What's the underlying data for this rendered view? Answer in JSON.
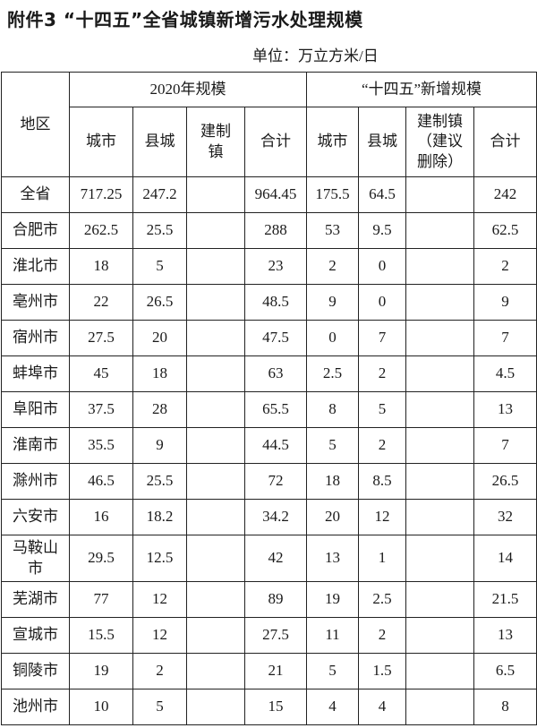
{
  "title": "附件3 “十四五”全省城镇新增污水处理规模",
  "unit": "单位：万立方米/日",
  "table": {
    "region_header": "地区",
    "group_2020": "2020年规模",
    "group_new": "“十四五”新增规模",
    "sub_2020": [
      "城市",
      "县城",
      "建制镇",
      "合计"
    ],
    "sub_new": [
      "城市",
      "县城",
      "建制镇（建议删除）",
      "合计"
    ],
    "rows": [
      {
        "region": "全省",
        "c2020": [
          "717.25",
          "247.2",
          "",
          "964.45"
        ],
        "cnew": [
          "175.5",
          "64.5",
          "",
          "242"
        ]
      },
      {
        "region": "合肥市",
        "c2020": [
          "262.5",
          "25.5",
          "",
          "288"
        ],
        "cnew": [
          "53",
          "9.5",
          "",
          "62.5"
        ]
      },
      {
        "region": "淮北市",
        "c2020": [
          "18",
          "5",
          "",
          "23"
        ],
        "cnew": [
          "2",
          "0",
          "",
          "2"
        ]
      },
      {
        "region": "亳州市",
        "c2020": [
          "22",
          "26.5",
          "",
          "48.5"
        ],
        "cnew": [
          "9",
          "0",
          "",
          "9"
        ]
      },
      {
        "region": "宿州市",
        "c2020": [
          "27.5",
          "20",
          "",
          "47.5"
        ],
        "cnew": [
          "0",
          "7",
          "",
          "7"
        ]
      },
      {
        "region": "蚌埠市",
        "c2020": [
          "45",
          "18",
          "",
          "63"
        ],
        "cnew": [
          "2.5",
          "2",
          "",
          "4.5"
        ]
      },
      {
        "region": "阜阳市",
        "c2020": [
          "37.5",
          "28",
          "",
          "65.5"
        ],
        "cnew": [
          "8",
          "5",
          "",
          "13"
        ]
      },
      {
        "region": "淮南市",
        "c2020": [
          "35.5",
          "9",
          "",
          "44.5"
        ],
        "cnew": [
          "5",
          "2",
          "",
          "7"
        ]
      },
      {
        "region": "滁州市",
        "c2020": [
          "46.5",
          "25.5",
          "",
          "72"
        ],
        "cnew": [
          "18",
          "8.5",
          "",
          "26.5"
        ]
      },
      {
        "region": "六安市",
        "c2020": [
          "16",
          "18.2",
          "",
          "34.2"
        ],
        "cnew": [
          "20",
          "12",
          "",
          "32"
        ]
      },
      {
        "region": "马鞍山市",
        "c2020": [
          "29.5",
          "12.5",
          "",
          "42"
        ],
        "cnew": [
          "13",
          "1",
          "",
          "14"
        ]
      },
      {
        "region": "芜湖市",
        "c2020": [
          "77",
          "12",
          "",
          "89"
        ],
        "cnew": [
          "19",
          "2.5",
          "",
          "21.5"
        ]
      },
      {
        "region": "宣城市",
        "c2020": [
          "15.5",
          "12",
          "",
          "27.5"
        ],
        "cnew": [
          "11",
          "2",
          "",
          "13"
        ]
      },
      {
        "region": "铜陵市",
        "c2020": [
          "19",
          "2",
          "",
          "21"
        ],
        "cnew": [
          "5",
          "1.5",
          "",
          "6.5"
        ]
      },
      {
        "region": "池州市",
        "c2020": [
          "10",
          "5",
          "",
          "15"
        ],
        "cnew": [
          "4",
          "4",
          "",
          "8"
        ]
      }
    ]
  }
}
